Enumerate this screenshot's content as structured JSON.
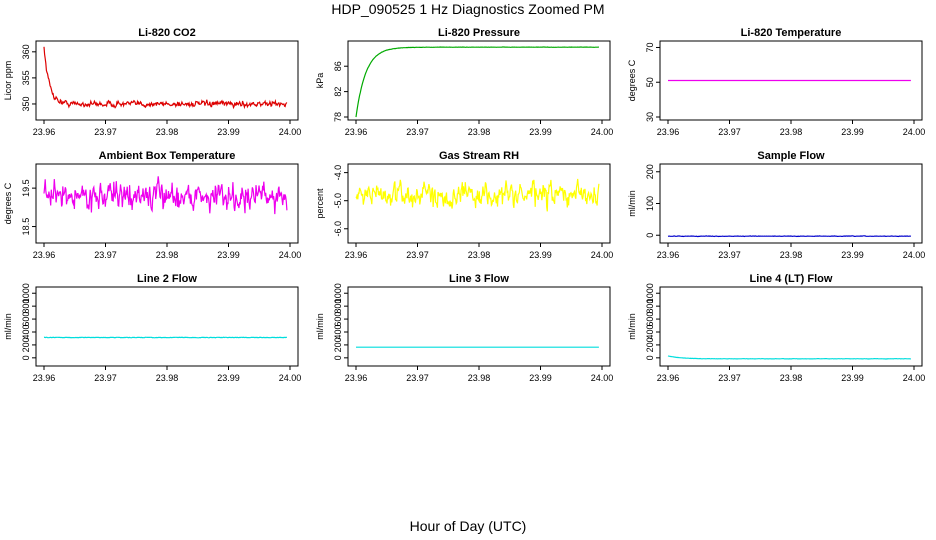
{
  "title": "HDP_090525  1 Hz Diagnostics Zoomed PM",
  "xlabel": "Hour of Day (UTC)",
  "chart_data": [
    {
      "type": "line",
      "title": "Li-820 CO2",
      "ylabel": "Licor ppm",
      "color": "#dd0000",
      "xlim": [
        23.96,
        24.0
      ],
      "ylim": [
        347.5,
        361.5
      ],
      "yticks": [
        350,
        355,
        360
      ],
      "xticks": [
        "23.96",
        "23.97",
        "23.98",
        "23.99",
        "24.00"
      ],
      "series": [
        {
          "profile": "decay",
          "start": 361,
          "settle": 350,
          "tau": 0.00085,
          "noise": 0.45,
          "t0": 23.96,
          "t1": 23.9995
        }
      ]
    },
    {
      "type": "line",
      "title": "Li-820 Pressure",
      "ylabel": "kPa",
      "color": "#00aa00",
      "xlim": [
        23.96,
        24.0
      ],
      "ylim": [
        78,
        89.5
      ],
      "yticks": [
        78,
        82,
        86
      ],
      "xticks": [
        "23.96",
        "23.97",
        "23.98",
        "23.99",
        "24.00"
      ],
      "series": [
        {
          "profile": "rise",
          "start": 78,
          "settle": 89,
          "tau": 0.0016,
          "noise": 0.02,
          "t0": 23.96,
          "t1": 23.9995
        }
      ]
    },
    {
      "type": "line",
      "title": "Li-820 Temperature",
      "ylabel": "degrees C",
      "color": "#ee00ee",
      "xlim": [
        23.96,
        24.0
      ],
      "ylim": [
        30,
        72
      ],
      "yticks": [
        30,
        50,
        70
      ],
      "xticks": [
        "23.96",
        "23.97",
        "23.98",
        "23.99",
        "24.00"
      ],
      "series": [
        {
          "profile": "flat",
          "level": 51,
          "noise": 0,
          "t0": 23.96,
          "t1": 23.9995
        }
      ]
    },
    {
      "type": "line",
      "title": "Ambient Box Temperature",
      "ylabel": "degrees C",
      "color": "#ee00ee",
      "xlim": [
        23.96,
        24.0
      ],
      "ylim": [
        18.15,
        20.05
      ],
      "yticks": [
        18.5,
        19.5
      ],
      "xticks": [
        "23.96",
        "23.97",
        "23.98",
        "23.99",
        "24.00"
      ],
      "series": [
        {
          "profile": "noise",
          "level": 19.3,
          "noise": 0.28,
          "t0": 23.96,
          "t1": 23.9995
        }
      ]
    },
    {
      "type": "line",
      "title": "Gas Stream RH",
      "ylabel": "percent",
      "color": "#ffff00",
      "xlim": [
        23.96,
        24.0
      ],
      "ylim": [
        -6.4,
        -3.8
      ],
      "yticks": [
        -6.0,
        -5.0,
        -4.0
      ],
      "xticks": [
        "23.96",
        "23.97",
        "23.98",
        "23.99",
        "24.00"
      ],
      "series": [
        {
          "profile": "noise",
          "level": -4.8,
          "noise": 0.35,
          "t0": 23.96,
          "t1": 23.9995
        }
      ]
    },
    {
      "type": "line",
      "title": "Sample Flow",
      "ylabel": "ml/min",
      "color": "#0000cc",
      "xlim": [
        23.96,
        24.0
      ],
      "ylim": [
        -15,
        215
      ],
      "yticks": [
        0,
        100,
        200
      ],
      "xticks": [
        "23.96",
        "23.97",
        "23.98",
        "23.99",
        "24.00"
      ],
      "series": [
        {
          "profile": "noise",
          "level": -3,
          "noise": 0.6,
          "t0": 23.96,
          "t1": 23.9995
        }
      ]
    },
    {
      "type": "line",
      "title": "Line 2 Flow",
      "ylabel": "ml/min",
      "color": "#00dddd",
      "xlim": [
        23.96,
        24.0
      ],
      "ylim": [
        -80,
        1050
      ],
      "yticks": [
        0,
        200,
        400,
        600,
        800,
        1000
      ],
      "xticks": [
        "23.96",
        "23.97",
        "23.98",
        "23.99",
        "24.00"
      ],
      "series": [
        {
          "profile": "noise",
          "level": 315,
          "noise": 3,
          "t0": 23.96,
          "t1": 23.9995
        }
      ]
    },
    {
      "type": "line",
      "title": "Line 3 Flow",
      "ylabel": "ml/min",
      "color": "#00dddd",
      "xlim": [
        23.96,
        24.0
      ],
      "ylim": [
        -80,
        1050
      ],
      "yticks": [
        0,
        200,
        400,
        600,
        800,
        1000
      ],
      "xticks": [
        "23.96",
        "23.97",
        "23.98",
        "23.99",
        "24.00"
      ],
      "series": [
        {
          "profile": "flat",
          "level": 165,
          "noise": 0,
          "t0": 23.96,
          "t1": 23.9995
        }
      ]
    },
    {
      "type": "line",
      "title": "Line 4 (LT) Flow",
      "ylabel": "ml/min",
      "color": "#00dddd",
      "xlim": [
        23.96,
        24.0
      ],
      "ylim": [
        -80,
        1050
      ],
      "yticks": [
        0,
        200,
        400,
        600,
        800,
        1000
      ],
      "xticks": [
        "23.96",
        "23.97",
        "23.98",
        "23.99",
        "24.00"
      ],
      "series": [
        {
          "profile": "decay",
          "start": 30,
          "settle": -15,
          "tau": 0.002,
          "noise": 2,
          "t0": 23.96,
          "t1": 23.9995
        }
      ]
    }
  ]
}
